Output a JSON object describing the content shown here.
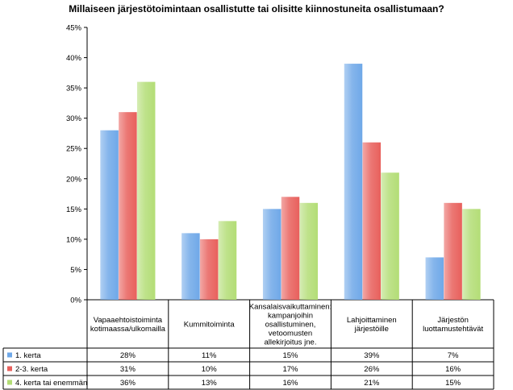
{
  "chart_data": {
    "type": "bar",
    "title": "Millaiseen järjestötoimintaan osallistutte tai olisitte kiinnostuneita osallistumaan?",
    "xlabel": "",
    "ylabel": "",
    "ylim": [
      0,
      45
    ],
    "ytick_labels": [
      "0%",
      "5%",
      "10%",
      "15%",
      "20%",
      "25%",
      "30%",
      "35%",
      "40%",
      "45%"
    ],
    "grid": false,
    "legend_position": "data-table",
    "categories": [
      [
        "Vapaaehtoistoiminta",
        "kotimaassa/ulkomailla"
      ],
      [
        "Kummitoiminta"
      ],
      [
        "Kansalaisvaikuttaminen:",
        "kampanjoihin",
        "osallistuminen,",
        "vetoomusten",
        "allekirjoitus jne."
      ],
      [
        "Lahjoittaminen",
        "järjestöille"
      ],
      [
        "Järjestön",
        "luottamustehtävät"
      ]
    ],
    "series": [
      {
        "name": "1. kerta",
        "values": [
          28,
          11,
          15,
          39,
          7
        ],
        "value_labels": [
          "28%",
          "11%",
          "15%",
          "39%",
          "7%"
        ],
        "color": "#6fa8e8"
      },
      {
        "name": "2-3. kerta",
        "values": [
          31,
          10,
          17,
          26,
          16
        ],
        "value_labels": [
          "31%",
          "10%",
          "17%",
          "26%",
          "16%"
        ],
        "color": "#e8605c"
      },
      {
        "name": "4. kerta tai enemmän",
        "values": [
          36,
          13,
          16,
          21,
          15
        ],
        "value_labels": [
          "36%",
          "13%",
          "16%",
          "21%",
          "15%"
        ],
        "color": "#b3dd76"
      }
    ]
  }
}
